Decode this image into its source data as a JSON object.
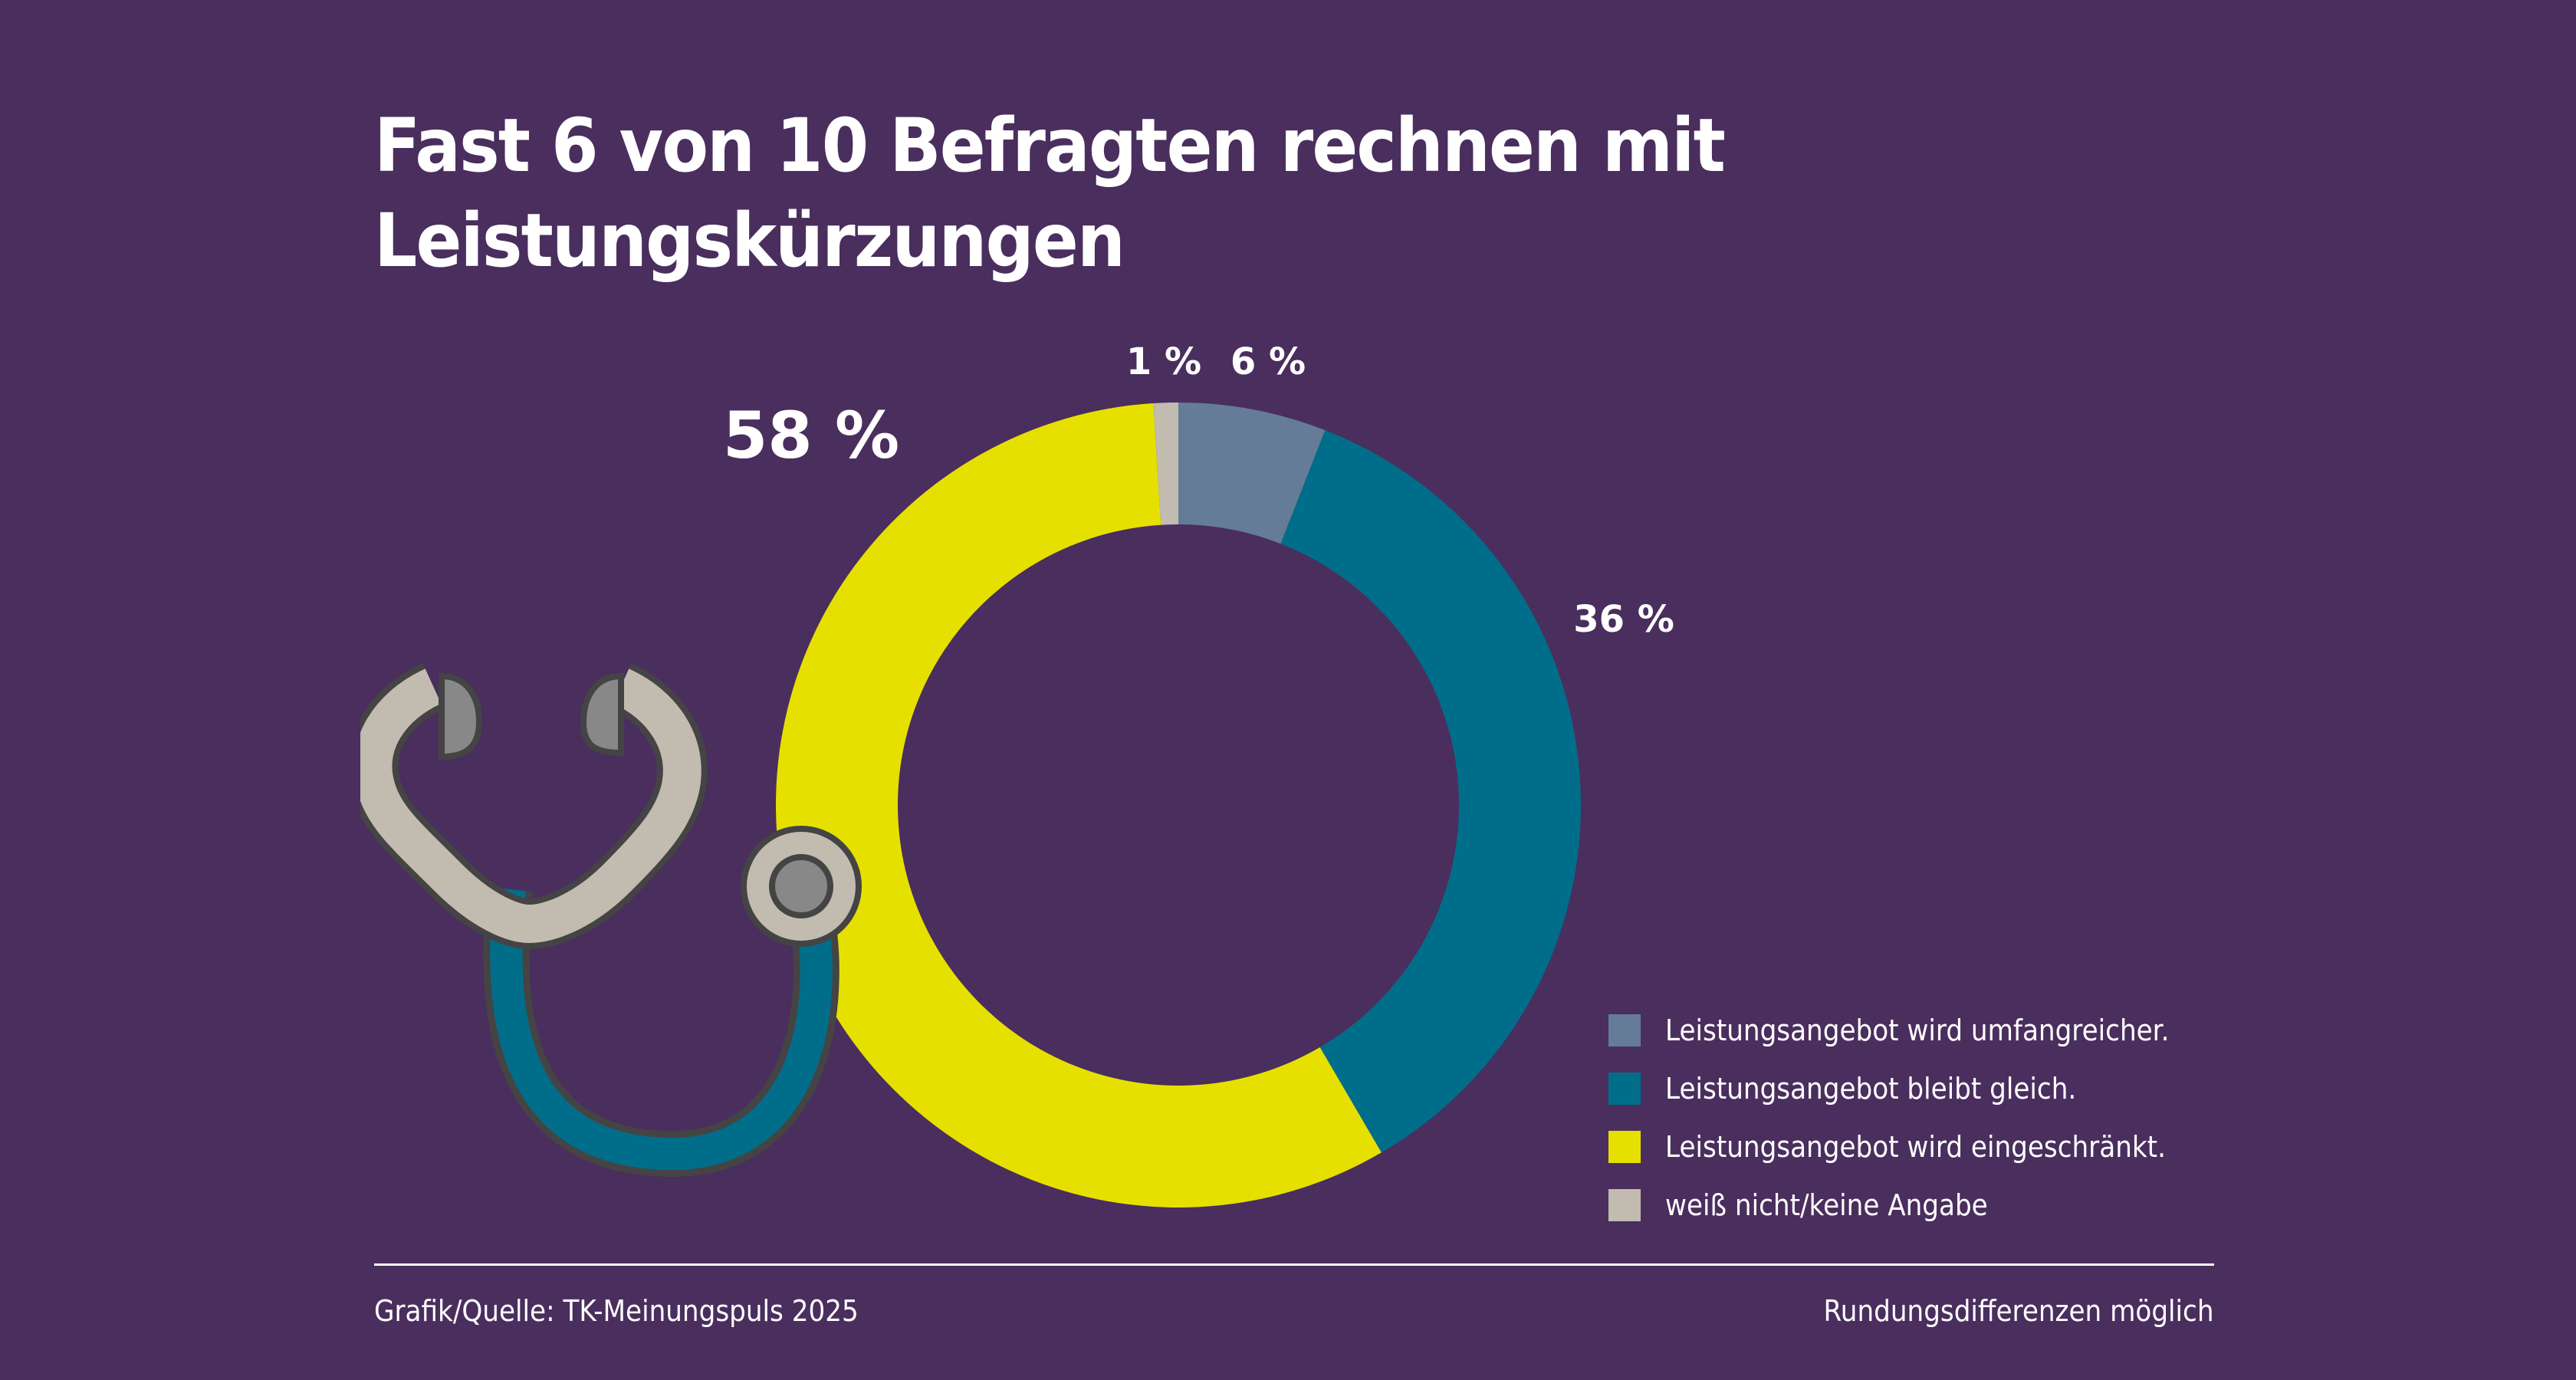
{
  "title": {
    "line1": "Fast 6 von 10 Befragten rechnen mit",
    "line2": "Leistungskürzungen"
  },
  "chart_data": {
    "type": "pie",
    "variant": "donut",
    "title": "Fast 6 von 10 Befragten rechnen mit Leistungskürzungen",
    "start": "top",
    "direction": "clockwise",
    "slices": [
      {
        "key": "umfangreicher",
        "label": "Leistungsangebot wird umfangreicher.",
        "value": 6,
        "display": "6 %",
        "color": "#647c97"
      },
      {
        "key": "gleich",
        "label": "Leistungsangebot bleibt gleich.",
        "value": 36,
        "display": "36 %",
        "color": "#006e8a"
      },
      {
        "key": "eingeschraenkt",
        "label": "Leistungsangebot wird eingeschränkt.",
        "value": 58,
        "display": "58 %",
        "color": "#e6e000"
      },
      {
        "key": "weiss-nicht",
        "label": "weiß nicht/keine Angabe",
        "value": 1,
        "display": "1 %",
        "color": "#c2bbb0"
      }
    ],
    "legend_position": "bottom-right",
    "unit": "%"
  },
  "legend": {
    "items": [
      {
        "label": "Leistungsangebot wird umfangreicher.",
        "color": "#647c97"
      },
      {
        "label": "Leistungsangebot bleibt gleich.",
        "color": "#006e8a"
      },
      {
        "label": "Leistungsangebot wird eingeschränkt.",
        "color": "#e6e000"
      },
      {
        "label": "weiß nicht/keine Angabe",
        "color": "#c2bbb0"
      }
    ]
  },
  "footer": {
    "source": "Grafik/Quelle: TK-Meinungspuls 2025",
    "note": "Rundungsdifferenzen möglich"
  },
  "illustration": {
    "icon": "stethoscope-icon",
    "colors": {
      "tube": "#006e8a",
      "metal": "#c2bbb0",
      "tip": "#888888",
      "outline": "#444444"
    }
  },
  "theme": {
    "background": "#4a2e5e",
    "text": "#ffffff"
  }
}
